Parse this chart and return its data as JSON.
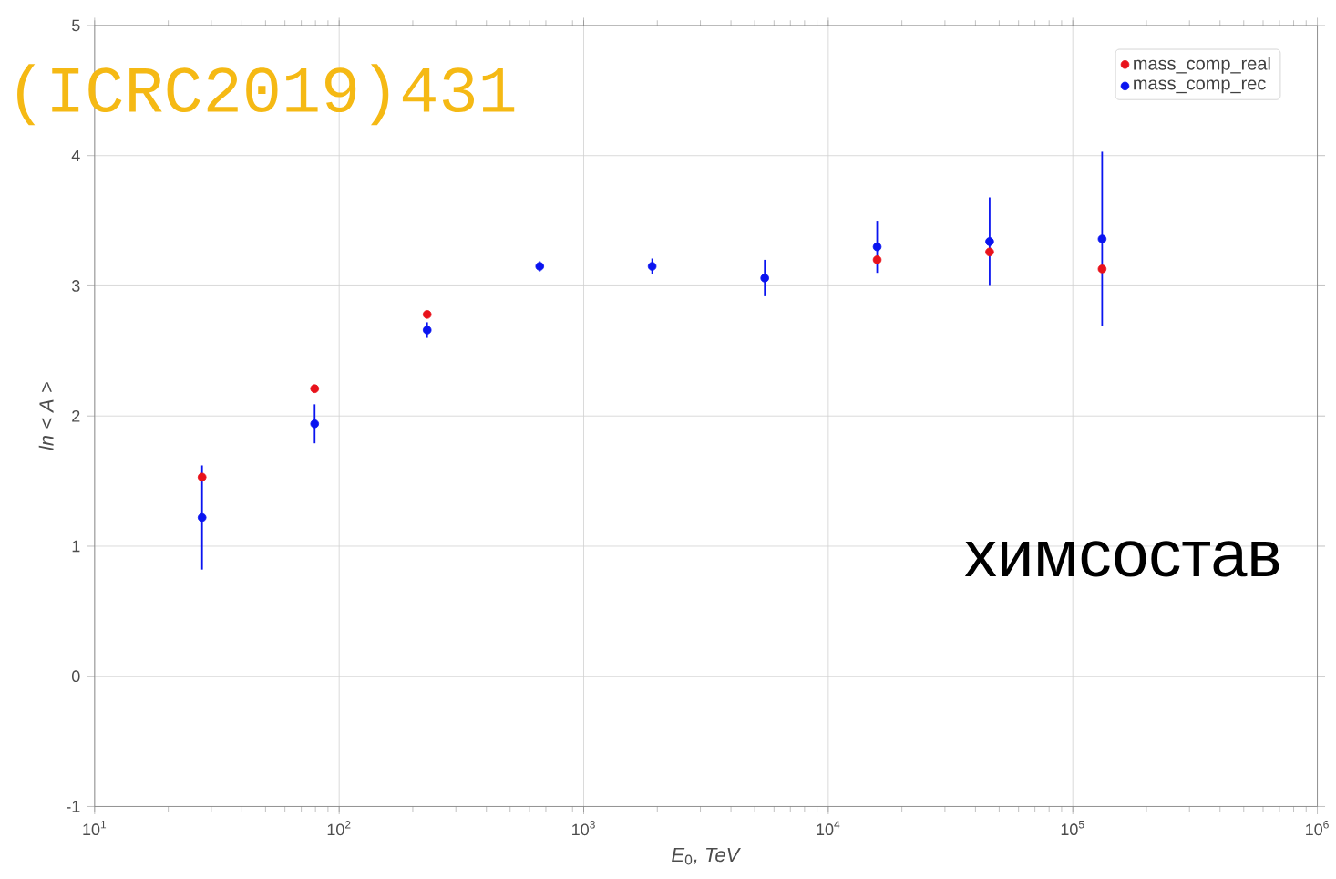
{
  "chart_data": {
    "type": "scatter",
    "xlabel": "*E*$_{0}$*, TeV*",
    "ylabel": "*ln < A >*",
    "annotations": [
      "(ICRC2019)431",
      "химсостав"
    ],
    "x": [
      27.5,
      79.4,
      229,
      661,
      1905,
      5500,
      15850,
      45700,
      131800
    ],
    "series": [
      {
        "name": "mass_comp_real",
        "color": "#e8121b",
        "values": [
          1.53,
          2.21,
          2.78,
          null,
          null,
          null,
          3.2,
          3.26,
          3.13
        ]
      },
      {
        "name": "mass_comp_rec",
        "color": "#0a14f0",
        "values": [
          1.22,
          1.94,
          2.66,
          3.15,
          3.15,
          3.06,
          3.3,
          3.34,
          3.36
        ],
        "errors": [
          0.4,
          0.15,
          0.06,
          0.04,
          0.06,
          0.14,
          0.2,
          0.34,
          0.67
        ]
      }
    ],
    "xlim": [
      10,
      1000000
    ],
    "ylim": [
      -1,
      5
    ],
    "xticks": [
      {
        "value": 10,
        "label": "10$^{1}$"
      },
      {
        "value": 100,
        "label": "10$^{2}$"
      },
      {
        "value": 1000,
        "label": "10$^{3}$"
      },
      {
        "value": 10000,
        "label": "10$^{4}$"
      },
      {
        "value": 100000,
        "label": "10$^{5}$"
      },
      {
        "value": 1000000,
        "label": "10$^{6}$"
      }
    ],
    "yticks": [
      -1,
      0,
      1,
      2,
      3,
      4,
      5
    ],
    "log": "x",
    "grid": true,
    "legend": "top right",
    "marker": "circle"
  }
}
